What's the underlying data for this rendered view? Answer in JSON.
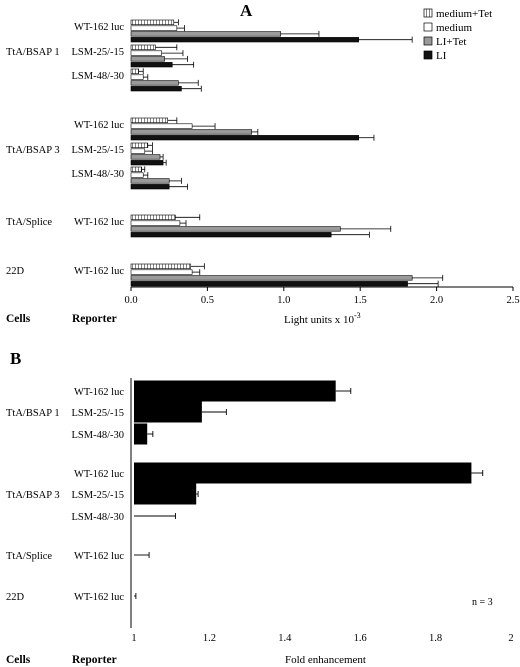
{
  "chart_data": [
    {
      "panel": "A",
      "type": "bar",
      "orientation": "horizontal",
      "group_headers": {
        "cells": "Cells",
        "reporter": "Reporter"
      },
      "xlabel": "Light units x 10",
      "xlabel_exponent": "-3",
      "xlim": [
        0,
        2.5
      ],
      "xticks": [
        "0.0",
        "0.5",
        "1.0",
        "1.5",
        "2.0",
        "2.5"
      ],
      "xtick_values": [
        0,
        0.5,
        1.0,
        1.5,
        2.0,
        2.5
      ],
      "legend_position": "top-right",
      "series": [
        {
          "name": "medium+Tet",
          "pattern": "hatch"
        },
        {
          "name": "medium",
          "pattern": "white"
        },
        {
          "name": "LI+Tet",
          "pattern": "grey"
        },
        {
          "name": "LI",
          "pattern": "black"
        }
      ],
      "rows": [
        {
          "cell": "",
          "reporter": "WT-162 luc",
          "values": [
            0.28,
            0.3,
            0.98,
            1.49
          ],
          "errors": [
            0.03,
            0.05,
            0.25,
            0.35
          ]
        },
        {
          "cell": "TtA/BSAP 1",
          "reporter": "LSM-25/-15",
          "values": [
            0.16,
            0.2,
            0.22,
            0.27
          ],
          "errors": [
            0.14,
            0.14,
            0.15,
            0.14
          ]
        },
        {
          "cell": "",
          "reporter": "LSM-48/-30",
          "values": [
            0.05,
            0.08,
            0.31,
            0.33
          ],
          "errors": [
            0.03,
            0.03,
            0.13,
            0.13
          ]
        },
        {
          "cell": "",
          "reporter": "WT-162 luc",
          "values": [
            0.24,
            0.4,
            0.79,
            1.49
          ],
          "errors": [
            0.06,
            0.15,
            0.04,
            0.1
          ]
        },
        {
          "cell": "TtA/BSAP 3",
          "reporter": "LSM-25/-15",
          "values": [
            0.11,
            0.09,
            0.19,
            0.21
          ],
          "errors": [
            0.03,
            0.05,
            0.02,
            0.02
          ]
        },
        {
          "cell": "",
          "reporter": "LSM-48/-30",
          "values": [
            0.07,
            0.08,
            0.25,
            0.25
          ],
          "errors": [
            0.02,
            0.03,
            0.08,
            0.12
          ]
        },
        {
          "cell": "TtA/Splice",
          "reporter": "WT-162 luc",
          "values": [
            0.29,
            0.32,
            1.37,
            1.31
          ],
          "errors": [
            0.16,
            0.04,
            0.33,
            0.25
          ]
        },
        {
          "cell": "22D",
          "reporter": "WT-162 luc",
          "values": [
            0.39,
            0.4,
            1.84,
            1.81
          ],
          "errors": [
            0.09,
            0.05,
            0.2,
            0.2
          ]
        }
      ]
    },
    {
      "panel": "B",
      "type": "bar",
      "orientation": "horizontal",
      "group_headers": {
        "cells": "Cells",
        "reporter": "Reporter"
      },
      "xlabel": "Fold enhancement",
      "xlim": [
        1,
        2
      ],
      "xticks": [
        "1",
        "1.2",
        "1.4",
        "1.6",
        "1.8",
        "2"
      ],
      "xtick_values": [
        1,
        1.2,
        1.4,
        1.6,
        1.8,
        2
      ],
      "annotation": "n = 3",
      "rows": [
        {
          "cell": "",
          "reporter": "WT-162 luc",
          "value": 1.535,
          "error": 0.04
        },
        {
          "cell": "TtA/BSAP 1",
          "reporter": "LSM-25/-15",
          "value": 1.18,
          "error": 0.065
        },
        {
          "cell": "",
          "reporter": "LSM-48/-30",
          "value": 1.035,
          "error": 0.015
        },
        {
          "cell": "",
          "reporter": "WT-162 luc",
          "value": 1.895,
          "error": 0.03
        },
        {
          "cell": "TtA/BSAP 3",
          "reporter": "LSM-25/-15",
          "value": 1.165,
          "error": 0.005
        },
        {
          "cell": "",
          "reporter": "LSM-48/-30",
          "value": 1.0,
          "error": 0.11
        },
        {
          "cell": "TtA/Splice",
          "reporter": "WT-162 luc",
          "value": 1.0,
          "error": 0.04
        },
        {
          "cell": "22D",
          "reporter": "WT-162 luc",
          "value": 1.0,
          "error": 0.005
        }
      ]
    }
  ]
}
